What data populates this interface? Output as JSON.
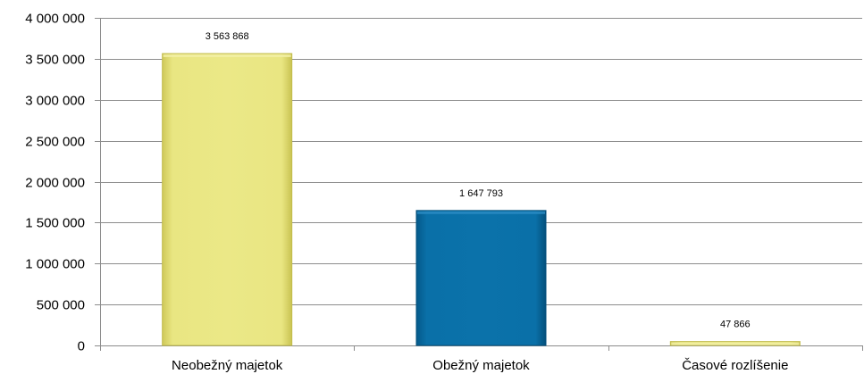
{
  "chart_data": {
    "type": "bar",
    "title": "",
    "xlabel": "",
    "ylabel": "",
    "categories": [
      "Neobežný majetok",
      "Obežný majetok",
      "Časové rozlíšenie"
    ],
    "values": [
      3563868,
      1647793,
      47866
    ],
    "data_labels": [
      "3 563 868",
      "1 647 793",
      "47 866"
    ],
    "bar_colors": [
      "#E8E47C",
      "#0A6EA6",
      "#E8E47C"
    ],
    "ylim": [
      0,
      4000000
    ],
    "yticks": [
      0,
      500000,
      1000000,
      1500000,
      2000000,
      2500000,
      3000000,
      3500000,
      4000000
    ],
    "ytick_labels": [
      "0",
      "500 000",
      "1 000 000",
      "1 500 000",
      "2 000 000",
      "2 500 000",
      "3 000 000",
      "3 500 000",
      "4 000 000"
    ],
    "grid": true,
    "legend": "none"
  }
}
